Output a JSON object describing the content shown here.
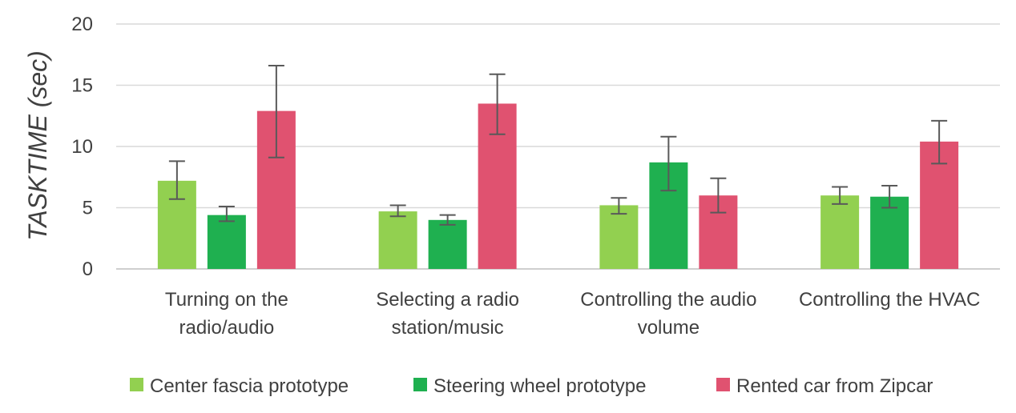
{
  "chart_data": {
    "type": "bar",
    "ylabel": "TASKTIME (sec)",
    "ylim": [
      0,
      20
    ],
    "yticks": [
      "0",
      "5",
      "10",
      "15",
      "20"
    ],
    "grid": true,
    "legend_position": "bottom",
    "categories": [
      [
        "Turning on the",
        "radio/audio"
      ],
      [
        "Selecting a radio",
        "station/music"
      ],
      [
        "Controlling the audio",
        "volume"
      ],
      [
        "Controlling the HVAC"
      ]
    ],
    "series": [
      {
        "name": "Center fascia prototype",
        "color": "#92d050",
        "values": [
          7.2,
          4.7,
          5.2,
          6.0
        ],
        "err_low": [
          5.7,
          4.3,
          4.5,
          5.3
        ],
        "err_high": [
          8.8,
          5.2,
          5.8,
          6.7
        ]
      },
      {
        "name": "Steering wheel prototype",
        "color": "#1fb050",
        "values": [
          4.4,
          4.0,
          8.7,
          5.9
        ],
        "err_low": [
          3.9,
          3.6,
          6.4,
          5.0
        ],
        "err_high": [
          5.1,
          4.4,
          10.8,
          6.8
        ]
      },
      {
        "name": "Rented car from Zipcar",
        "color": "#e05270",
        "values": [
          12.9,
          13.5,
          6.0,
          10.4
        ],
        "err_low": [
          9.1,
          11.0,
          4.6,
          8.6
        ],
        "err_high": [
          16.6,
          15.9,
          7.4,
          12.1
        ]
      }
    ]
  }
}
